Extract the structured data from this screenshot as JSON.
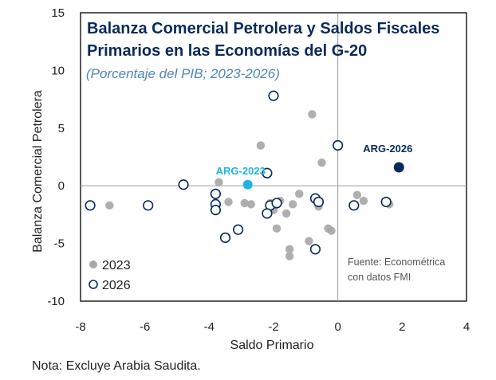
{
  "chart_data": {
    "type": "scatter",
    "title_line1": "Balanza Comercial Petrolera y Saldos Fiscales",
    "title_line2": "Primarios en las Economías del G-20",
    "subtitle": "(Porcentaje del PIB; 2023-2026)",
    "xlabel": "Saldo Primario",
    "ylabel": "Balanza Comercial Petrolera",
    "xlim": [
      -8,
      4
    ],
    "ylim": [
      -10,
      15
    ],
    "xticks": [
      -8,
      -6,
      -4,
      -2,
      0,
      2,
      4
    ],
    "yticks": [
      15,
      10,
      5,
      0,
      -5,
      -10
    ],
    "reference_lines": {
      "x": 0,
      "y": 0
    },
    "legend_position": "bottom-left",
    "source": [
      "Fuente: Econométrica",
      "con datos FMI"
    ],
    "colors": {
      "series_2023": "#a6a6a6",
      "series_2026": "#0b2a5c",
      "arg_2023": "#1fb2e6",
      "arg_2026": "#0b2a5c",
      "title": "#0b2a5c",
      "subtitle": "#4f86b8"
    },
    "series": [
      {
        "name": "2023",
        "style": "filled",
        "points": [
          [
            -7.1,
            -1.7
          ],
          [
            -3.7,
            0.3
          ],
          [
            -3.4,
            -1.4
          ],
          [
            -2.9,
            -1.5
          ],
          [
            -2.7,
            -1.6
          ],
          [
            -2.4,
            3.5
          ],
          [
            -2.1,
            -1.5
          ],
          [
            -1.9,
            -3.7
          ],
          [
            -1.8,
            -1.3
          ],
          [
            -2.0,
            -2.1
          ],
          [
            -1.6,
            -2.4
          ],
          [
            -1.5,
            -6.1
          ],
          [
            -1.4,
            -1.6
          ],
          [
            -1.2,
            -0.7
          ],
          [
            -1.5,
            -5.5
          ],
          [
            -0.9,
            -4.8
          ],
          [
            -0.8,
            6.2
          ],
          [
            -0.6,
            -1.8
          ],
          [
            -0.5,
            2.0
          ],
          [
            -0.3,
            -3.7
          ],
          [
            -0.2,
            -3.9
          ],
          [
            0.6,
            -0.8
          ],
          [
            0.8,
            -1.3
          ],
          [
            1.6,
            -1.6
          ]
        ]
      },
      {
        "name": "2026",
        "style": "hollow",
        "points": [
          [
            -7.7,
            -1.7
          ],
          [
            -5.9,
            -1.7
          ],
          [
            -4.8,
            0.1
          ],
          [
            -3.8,
            -0.7
          ],
          [
            -3.8,
            -1.6
          ],
          [
            -3.8,
            -2.1
          ],
          [
            -3.5,
            -4.5
          ],
          [
            -3.1,
            -3.8
          ],
          [
            -2.2,
            1.1
          ],
          [
            -2.0,
            7.8
          ],
          [
            -2.1,
            -1.7
          ],
          [
            -1.9,
            -1.5
          ],
          [
            -2.2,
            -2.4
          ],
          [
            -0.7,
            -1.1
          ],
          [
            -0.6,
            -1.4
          ],
          [
            -0.7,
            -5.5
          ],
          [
            0.0,
            3.5
          ],
          [
            0.5,
            -1.7
          ],
          [
            1.5,
            -1.4
          ]
        ]
      }
    ],
    "highlights": [
      {
        "label": "ARG-2023",
        "x": -2.8,
        "y": 0.1
      },
      {
        "label": "ARG-2026",
        "x": 1.9,
        "y": 1.6
      }
    ],
    "legend": [
      "2023",
      "2026"
    ]
  },
  "note": "Nota: Excluye Arabia Saudita."
}
